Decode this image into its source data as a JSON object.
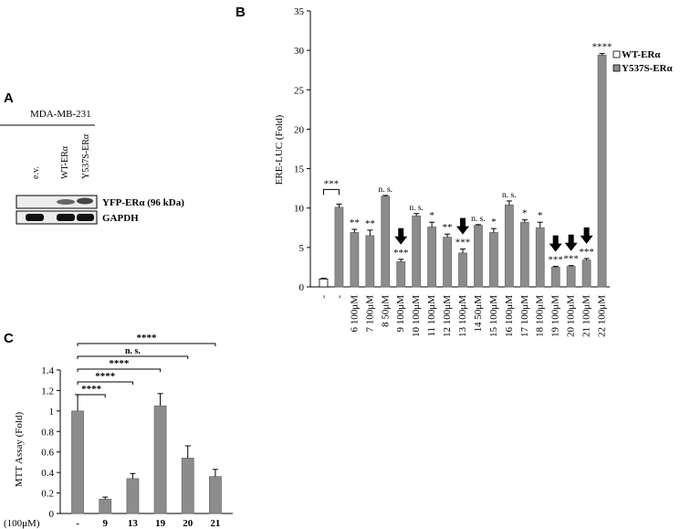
{
  "panels": {
    "a_label": "A",
    "b_label": "B",
    "c_label": "C"
  },
  "blot": {
    "cell_line": "MDA-MB-231",
    "lanes": [
      "e.v.",
      "WT-ERα",
      "Y537S-ERα"
    ],
    "bands": [
      "YFP-ERα (96 kDa)",
      "GAPDH"
    ]
  },
  "chart_data": [
    {
      "type": "bar",
      "panel": "B",
      "title": "",
      "xlabel": "",
      "ylabel": "ERE-LUC (Fold)",
      "ylim": [
        0,
        35
      ],
      "yticks": [
        0,
        5,
        10,
        15,
        20,
        25,
        30,
        35
      ],
      "legend": {
        "placement": "top-right",
        "entries": [
          "WT-ERα",
          "Y537S-ERα"
        ]
      },
      "categories": [
        "-",
        "-",
        "6 100μM",
        "7 100μM",
        "8 50μM",
        "9 100μM",
        "10 100μM",
        "11 100μM",
        "12 100μM",
        "13 100μM",
        "14 50μM",
        "15 100μM",
        "16 100μM",
        "17 100μM",
        "18 100μM",
        "19 100μM",
        "20 100μM",
        "21 100μM",
        "22 100μM"
      ],
      "series_by_bar": [
        "WT-ERα",
        "Y537S-ERα",
        "Y537S-ERα",
        "Y537S-ERα",
        "Y537S-ERα",
        "Y537S-ERα",
        "Y537S-ERα",
        "Y537S-ERα",
        "Y537S-ERα",
        "Y537S-ERα",
        "Y537S-ERα",
        "Y537S-ERα",
        "Y537S-ERα",
        "Y537S-ERα",
        "Y537S-ERα",
        "Y537S-ERα",
        "Y537S-ERα",
        "Y537S-ERα",
        "Y537S-ERα"
      ],
      "values": [
        1.0,
        10.1,
        6.9,
        6.5,
        11.5,
        3.2,
        9.0,
        7.6,
        6.3,
        4.3,
        7.8,
        6.9,
        10.4,
        8.2,
        7.5,
        2.5,
        2.6,
        3.4,
        29.4
      ],
      "errors": [
        0.1,
        0.4,
        0.4,
        0.7,
        0.1,
        0.3,
        0.3,
        0.6,
        0.4,
        0.5,
        0.1,
        0.5,
        0.5,
        0.3,
        0.7,
        0.1,
        0.1,
        0.2,
        0.2
      ],
      "significance": [
        "",
        "",
        "**",
        "**",
        "n. s.",
        "***",
        "n. s.",
        "*",
        "**",
        "***",
        "n. s.",
        "*",
        "n. s.",
        "*",
        "*",
        "***",
        "***",
        "***",
        "****"
      ],
      "arrows": [
        5,
        9,
        15,
        16,
        17
      ],
      "bracket": {
        "from": 0,
        "to": 1,
        "label": "***"
      }
    },
    {
      "type": "bar",
      "panel": "C",
      "title": "",
      "xlabel": "(100μM)",
      "ylabel": "MTT Assay (Fold)",
      "ylim": [
        0,
        1.4
      ],
      "yticks": [
        "0",
        "0.2",
        "0.4",
        "0.6",
        "0.8",
        "1",
        "1.2",
        "1.4"
      ],
      "categories": [
        "-",
        "9",
        "13",
        "19",
        "20",
        "21"
      ],
      "values": [
        1.0,
        0.14,
        0.34,
        1.05,
        0.54,
        0.36
      ],
      "errors": [
        0.16,
        0.02,
        0.05,
        0.12,
        0.12,
        0.07
      ],
      "brackets": [
        {
          "from": 0,
          "to": 1,
          "label": "****"
        },
        {
          "from": 0,
          "to": 2,
          "label": "****"
        },
        {
          "from": 0,
          "to": 3,
          "label": "****"
        },
        {
          "from": 0,
          "to": 4,
          "label": "n. s."
        },
        {
          "from": 0,
          "to": 5,
          "label": "****"
        }
      ]
    }
  ]
}
